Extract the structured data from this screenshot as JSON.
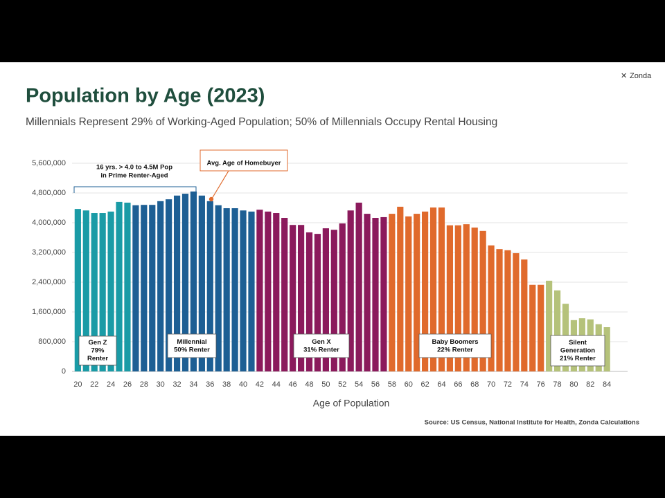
{
  "logo": "Zonda",
  "chart_data": {
    "type": "bar",
    "title": "Population by Age (2023)",
    "subtitle": "Millennials Represent 29% of Working-Aged Population; 50% of Millennials Occupy Rental Housing",
    "x_label": "Age of Population",
    "source": "Source:  US Census, National Institute for Health, Zonda Calculations",
    "xlim": [
      19.3,
      86.5
    ],
    "xticks": [
      20,
      22,
      24,
      26,
      28,
      30,
      32,
      34,
      36,
      38,
      40,
      42,
      44,
      46,
      48,
      50,
      52,
      54,
      56,
      58,
      60,
      62,
      64,
      66,
      68,
      70,
      72,
      74,
      76,
      78,
      80,
      82,
      84
    ],
    "ylim": [
      0,
      5600000
    ],
    "yticks": [
      0,
      {
        "value": 800000,
        "label": "800,000"
      },
      {
        "value": 1600000,
        "label": "1,600,000"
      },
      {
        "value": 2400000,
        "label": "2,400,000"
      },
      {
        "value": 3200000,
        "label": "3,200,000"
      },
      {
        "value": 4000000,
        "label": "4,000,000"
      },
      {
        "value": 4800000,
        "label": "4,800,000"
      },
      {
        "value": 5600000,
        "label": "5,600,000"
      }
    ],
    "grid": true,
    "series": [
      {
        "color": "#1a9ba6",
        "x": [
          20,
          21,
          22,
          23,
          24,
          25,
          26
        ],
        "values": [
          4370000,
          4330000,
          4260000,
          4260000,
          4300000,
          4560000,
          4540000
        ]
      },
      {
        "color": "#1d5f94",
        "x": [
          27,
          28,
          29,
          30,
          31,
          32,
          33,
          34,
          35,
          36,
          37,
          38,
          39,
          40,
          41
        ],
        "values": [
          4470000,
          4480000,
          4480000,
          4580000,
          4630000,
          4730000,
          4780000,
          4840000,
          4730000,
          4580000,
          4470000,
          4390000,
          4390000,
          4330000,
          4300000
        ]
      },
      {
        "color": "#8b1a5c",
        "x": [
          42,
          43,
          44,
          45,
          46,
          47,
          48,
          49,
          50,
          51,
          52,
          53,
          54,
          55,
          56,
          57
        ],
        "values": [
          4350000,
          4300000,
          4260000,
          4130000,
          3940000,
          3940000,
          3740000,
          3700000,
          3850000,
          3810000,
          3980000,
          4330000,
          4540000,
          4240000,
          4130000,
          4150000
        ]
      },
      {
        "color": "#e06a2c",
        "x": [
          58,
          59,
          60,
          61,
          62,
          63,
          64,
          65,
          66,
          67,
          68,
          69,
          70,
          71,
          72,
          73,
          74,
          75,
          76
        ],
        "values": [
          4240000,
          4430000,
          4170000,
          4240000,
          4300000,
          4410000,
          4410000,
          3930000,
          3930000,
          3960000,
          3870000,
          3780000,
          3390000,
          3290000,
          3260000,
          3180000,
          3010000,
          2330000,
          2330000
        ]
      },
      {
        "color": "#b5c27a",
        "x": [
          77,
          78,
          79,
          80,
          81,
          82,
          83,
          84
        ],
        "values": [
          2440000,
          2180000,
          1820000,
          1380000,
          1430000,
          1400000,
          1270000,
          1190000
        ]
      }
    ],
    "annotations": [
      {
        "lines": [
          "Gen Z",
          "79%",
          "Renter"
        ]
      },
      {
        "lines": [
          "Millennial",
          "50% Renter"
        ]
      },
      {
        "lines": [
          "Gen X",
          "31% Renter"
        ]
      },
      {
        "lines": [
          "Baby Boomers",
          "22% Renter"
        ]
      },
      {
        "lines": [
          "Silent",
          "Generation",
          "21% Renter"
        ]
      },
      {
        "lines": [
          "16 yrs. > 4.0 to 4.5M Pop",
          "in Prime Renter-Aged"
        ]
      },
      {
        "lines": [
          "Avg. Age of Homebuyer"
        ]
      }
    ]
  }
}
